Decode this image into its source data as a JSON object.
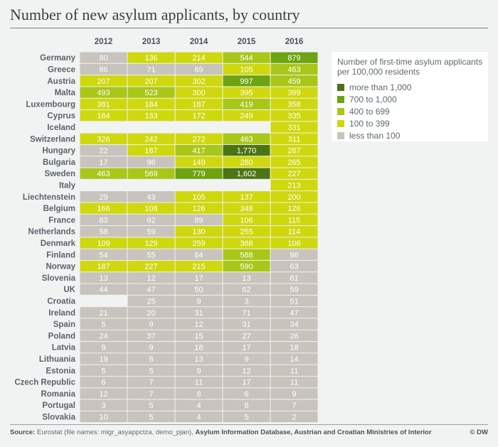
{
  "title": "Number of new asylum applicants, by country",
  "legend": {
    "title": "Number of first-time asylum applicants per 100,000 residents",
    "items": [
      {
        "label": "more than 1,000",
        "color": "#4c7414"
      },
      {
        "label": "700 to 1,000",
        "color": "#6ea311"
      },
      {
        "label": "400 to 699",
        "color": "#a9c719"
      },
      {
        "label": "100 to 399",
        "color": "#cfd80e"
      },
      {
        "label": "less than 100",
        "color": "#c8c3bd"
      }
    ]
  },
  "source": {
    "prefix": "Source:",
    "text1": "Eurostat (file names: migr_asyappctza, demo_pjan),",
    "text2": "Asylum Information Database, Austrian and Croatian Ministries of Interior",
    "credit": "© DW"
  },
  "chart_data": {
    "type": "heatmap",
    "title": "Number of new asylum applicants, by country",
    "columns": [
      "2012",
      "2013",
      "2014",
      "2015",
      "2016"
    ],
    "rows": [
      {
        "country": "Germany",
        "values": [
          "80",
          "136",
          "214",
          "544",
          "879"
        ]
      },
      {
        "country": "Greece",
        "values": [
          "86",
          "71",
          "69",
          "105",
          "463"
        ]
      },
      {
        "country": "Austria",
        "values": [
          "207",
          "207",
          "302",
          "997",
          "459"
        ]
      },
      {
        "country": "Malta",
        "values": [
          "493",
          "523",
          "300",
          "395",
          "399"
        ]
      },
      {
        "country": "Luxembourg",
        "values": [
          "381",
          "184",
          "187",
          "419",
          "358"
        ]
      },
      {
        "country": "Cyprus",
        "values": [
          "184",
          "133",
          "172",
          "249",
          "335"
        ]
      },
      {
        "country": "Iceland",
        "values": [
          null,
          null,
          null,
          null,
          "331"
        ]
      },
      {
        "country": "Switzerland",
        "values": [
          "326",
          "242",
          "272",
          "463",
          "311"
        ]
      },
      {
        "country": "Hungary",
        "values": [
          "22",
          "187",
          "417",
          "1,770",
          "287"
        ]
      },
      {
        "country": "Bulgaria",
        "values": [
          "17",
          "96",
          "149",
          "280",
          "265"
        ]
      },
      {
        "country": "Sweden",
        "values": [
          "463",
          "569",
          "779",
          "1,602",
          "227"
        ]
      },
      {
        "country": "Italy",
        "values": [
          null,
          null,
          null,
          null,
          "213"
        ]
      },
      {
        "country": "Liechtenstein",
        "values": [
          "29",
          "43",
          "105",
          "137",
          "200"
        ]
      },
      {
        "country": "Belgium",
        "values": [
          "166",
          "108",
          "126",
          "348",
          "126"
        ]
      },
      {
        "country": "France",
        "values": [
          "83",
          "92",
          "89",
          "106",
          "115"
        ]
      },
      {
        "country": "Netherlands",
        "values": [
          "58",
          "59",
          "130",
          "255",
          "114"
        ]
      },
      {
        "country": "Denmark",
        "values": [
          "109",
          "129",
          "259",
          "368",
          "106"
        ]
      },
      {
        "country": "Finland",
        "values": [
          "54",
          "55",
          "64",
          "588",
          "96"
        ]
      },
      {
        "country": "Norway",
        "values": [
          "187",
          "227",
          "215",
          "590",
          "63"
        ]
      },
      {
        "country": "Slovenia",
        "values": [
          "13",
          "12",
          "17",
          "13",
          "61"
        ]
      },
      {
        "country": "UK",
        "values": [
          "44",
          "47",
          "50",
          "62",
          "59"
        ]
      },
      {
        "country": "Croatia",
        "values": [
          null,
          "25",
          "9",
          "3",
          "51"
        ]
      },
      {
        "country": "Ireland",
        "values": [
          "21",
          "20",
          "31",
          "71",
          "47"
        ]
      },
      {
        "country": "Spain",
        "values": [
          "5",
          "9",
          "12",
          "31",
          "34"
        ]
      },
      {
        "country": "Poland",
        "values": [
          "24",
          "37",
          "15",
          "27",
          "26"
        ]
      },
      {
        "country": "Latvia",
        "values": [
          "9",
          "9",
          "18",
          "17",
          "18"
        ]
      },
      {
        "country": "Lithuania",
        "values": [
          "19",
          "8",
          "13",
          "9",
          "14"
        ]
      },
      {
        "country": "Estonia",
        "values": [
          "5",
          "5",
          "9",
          "12",
          "11"
        ]
      },
      {
        "country": "Czech Republic",
        "values": [
          "6",
          "7",
          "11",
          "17",
          "11"
        ]
      },
      {
        "country": "Romania",
        "values": [
          "12",
          "7",
          "8",
          "6",
          "9"
        ]
      },
      {
        "country": "Portugal",
        "values": [
          "3",
          "5",
          "4",
          "8",
          "7"
        ]
      },
      {
        "country": "Slovakia",
        "values": [
          "10",
          "5",
          "4",
          "5",
          "2"
        ]
      }
    ]
  }
}
